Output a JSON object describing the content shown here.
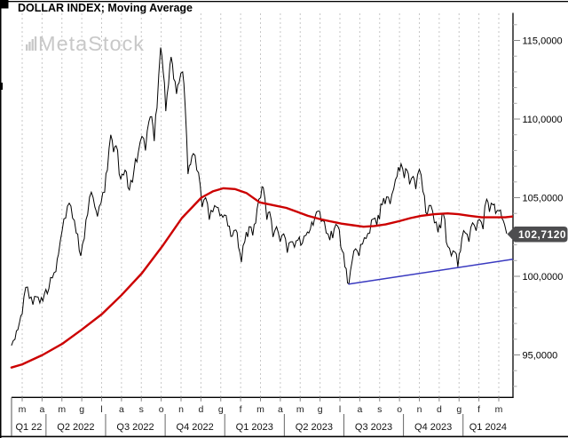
{
  "window": {
    "title": "DOLLAR INDEX; Moving Average",
    "watermark": "MetaStock"
  },
  "chart_data": {
    "type": "line",
    "title": "DOLLAR INDEX; Moving Average",
    "legend": "none",
    "grid": "dashed vertical line per month",
    "x_axis": {
      "unit": "months since 2022-03-01",
      "month_labels": [
        "m",
        "a",
        "m",
        "g",
        "l",
        "a",
        "s",
        "o",
        "n",
        "d",
        "g",
        "f",
        "m",
        "a",
        "m",
        "g",
        "l",
        "a",
        "s",
        "o",
        "n",
        "d",
        "g",
        "f",
        "m"
      ],
      "quarter_labels": [
        "Q1 22",
        "Q2 2022",
        "Q3 2022",
        "Q4 2022",
        "Q1 2023",
        "Q2 2023",
        "Q3 2023",
        "Q4 2023",
        "Q1 2024"
      ]
    },
    "y_axis": {
      "side": "right",
      "ylim": [
        92.3,
        116.7
      ],
      "major_ticks": [
        115,
        110,
        105,
        100,
        95
      ],
      "major_tick_labels": [
        "115,0000",
        "110,0000",
        "105,0000",
        "100,0000",
        "95,0000"
      ],
      "minor_tick_step": 1
    },
    "last_price": {
      "value": 102.712,
      "label": "102,7120",
      "flag_color": "#4d4d4f",
      "text_color": "#ffffff"
    },
    "series": [
      {
        "name": "DOLLAR INDEX (daily)",
        "color": "#000000",
        "style": "bars",
        "points": [
          [
            -0.54,
            95.6
          ],
          [
            -0.36,
            96.0
          ],
          [
            -0.22,
            96.6
          ],
          [
            -0.13,
            97.1
          ],
          [
            0.0,
            97.6
          ],
          [
            0.18,
            99.3
          ],
          [
            0.36,
            98.6
          ],
          [
            0.54,
            98.2
          ],
          [
            0.71,
            98.7
          ],
          [
            0.89,
            98.3
          ],
          [
            1.12,
            98.9
          ],
          [
            1.34,
            99.2
          ],
          [
            1.52,
            99.9
          ],
          [
            1.7,
            100.3
          ],
          [
            1.83,
            101.4
          ],
          [
            2.01,
            102.9
          ],
          [
            2.19,
            103.7
          ],
          [
            2.37,
            104.65
          ],
          [
            2.54,
            103.7
          ],
          [
            2.72,
            102.75
          ],
          [
            2.95,
            101.3
          ],
          [
            3.13,
            102.4
          ],
          [
            3.3,
            103.95
          ],
          [
            3.48,
            105.35
          ],
          [
            3.66,
            104.4
          ],
          [
            3.79,
            103.8
          ],
          [
            3.97,
            104.65
          ],
          [
            4.15,
            105.35
          ],
          [
            4.29,
            106.75
          ],
          [
            4.46,
            109.0
          ],
          [
            4.6,
            107.9
          ],
          [
            4.73,
            108.3
          ],
          [
            4.96,
            106.2
          ],
          [
            5.18,
            106.75
          ],
          [
            5.4,
            105.5
          ],
          [
            5.63,
            106.75
          ],
          [
            5.85,
            107.9
          ],
          [
            6.03,
            108.9
          ],
          [
            6.21,
            108.0
          ],
          [
            6.38,
            109.85
          ],
          [
            6.52,
            110.15
          ],
          [
            6.65,
            108.6
          ],
          [
            6.79,
            110.7
          ],
          [
            6.97,
            114.55
          ],
          [
            7.1,
            113.0
          ],
          [
            7.23,
            110.5
          ],
          [
            7.37,
            112.2
          ],
          [
            7.5,
            113.95
          ],
          [
            7.63,
            112.55
          ],
          [
            7.77,
            111.6
          ],
          [
            7.9,
            112.3
          ],
          [
            8.08,
            113.0
          ],
          [
            8.21,
            110.75
          ],
          [
            8.35,
            106.5
          ],
          [
            8.48,
            107.1
          ],
          [
            8.62,
            107.8
          ],
          [
            8.79,
            106.75
          ],
          [
            8.97,
            105.75
          ],
          [
            9.06,
            104.4
          ],
          [
            9.24,
            105.0
          ],
          [
            9.42,
            103.6
          ],
          [
            9.6,
            104.1
          ],
          [
            9.78,
            104.4
          ],
          [
            9.96,
            103.85
          ],
          [
            10.18,
            103.9
          ],
          [
            10.36,
            103.2
          ],
          [
            10.58,
            102.55
          ],
          [
            10.76,
            102.95
          ],
          [
            10.89,
            101.85
          ],
          [
            11.04,
            100.9
          ],
          [
            11.21,
            102.2
          ],
          [
            11.43,
            103.15
          ],
          [
            11.61,
            102.6
          ],
          [
            11.83,
            104.3
          ],
          [
            12.01,
            105.0
          ],
          [
            12.14,
            105.65
          ],
          [
            12.32,
            103.6
          ],
          [
            12.46,
            104.1
          ],
          [
            12.63,
            102.5
          ],
          [
            12.81,
            103.15
          ],
          [
            12.99,
            102.2
          ],
          [
            13.17,
            102.7
          ],
          [
            13.35,
            101.5
          ],
          [
            13.53,
            102.2
          ],
          [
            13.71,
            101.85
          ],
          [
            13.88,
            102.3
          ],
          [
            14.11,
            102.1
          ],
          [
            14.29,
            102.6
          ],
          [
            14.51,
            103.0
          ],
          [
            14.73,
            103.7
          ],
          [
            14.91,
            104.15
          ],
          [
            15.13,
            103.55
          ],
          [
            15.31,
            102.75
          ],
          [
            15.49,
            102.3
          ],
          [
            15.71,
            103.0
          ],
          [
            15.89,
            103.2
          ],
          [
            16.12,
            101.6
          ],
          [
            16.25,
            100.6
          ],
          [
            16.45,
            99.5
          ],
          [
            16.61,
            100.9
          ],
          [
            16.79,
            101.75
          ],
          [
            16.96,
            101.3
          ],
          [
            17.14,
            102.05
          ],
          [
            17.32,
            102.4
          ],
          [
            17.5,
            102.75
          ],
          [
            17.68,
            103.65
          ],
          [
            17.86,
            103.25
          ],
          [
            18.13,
            104.55
          ],
          [
            18.35,
            105.05
          ],
          [
            18.53,
            104.6
          ],
          [
            18.71,
            105.55
          ],
          [
            18.88,
            106.35
          ],
          [
            19.08,
            107.15
          ],
          [
            19.24,
            106.25
          ],
          [
            19.38,
            106.75
          ],
          [
            19.51,
            105.85
          ],
          [
            19.69,
            106.35
          ],
          [
            19.82,
            105.55
          ],
          [
            20.0,
            106.8
          ],
          [
            20.18,
            105.4
          ],
          [
            20.4,
            103.95
          ],
          [
            20.58,
            104.5
          ],
          [
            20.76,
            103.4
          ],
          [
            20.94,
            102.8
          ],
          [
            21.21,
            103.95
          ],
          [
            21.43,
            101.9
          ],
          [
            21.61,
            101.3
          ],
          [
            21.79,
            101.55
          ],
          [
            21.94,
            100.6
          ],
          [
            22.14,
            102.4
          ],
          [
            22.32,
            102.75
          ],
          [
            22.5,
            102.2
          ],
          [
            22.68,
            103.4
          ],
          [
            22.86,
            102.9
          ],
          [
            23.04,
            103.6
          ],
          [
            23.21,
            103.0
          ],
          [
            23.39,
            104.9
          ],
          [
            23.53,
            104.1
          ],
          [
            23.71,
            104.55
          ],
          [
            23.84,
            104.0
          ],
          [
            24.02,
            104.15
          ],
          [
            24.15,
            103.7
          ],
          [
            24.29,
            103.3
          ],
          [
            24.4,
            102.71
          ]
        ]
      },
      {
        "name": "Moving Average",
        "color": "#cc0000",
        "style": "smooth",
        "points": [
          [
            -0.54,
            94.2
          ],
          [
            0.0,
            94.4
          ],
          [
            1.03,
            95.0
          ],
          [
            2.01,
            95.7
          ],
          [
            2.99,
            96.6
          ],
          [
            4.02,
            97.6
          ],
          [
            5.0,
            98.8
          ],
          [
            6.03,
            100.2
          ],
          [
            7.05,
            101.9
          ],
          [
            8.04,
            103.7
          ],
          [
            9.02,
            105.0
          ],
          [
            9.6,
            105.4
          ],
          [
            10.13,
            105.6
          ],
          [
            10.71,
            105.55
          ],
          [
            11.29,
            105.3
          ],
          [
            11.96,
            104.7
          ],
          [
            12.72,
            104.5
          ],
          [
            13.3,
            104.35
          ],
          [
            13.84,
            104.1
          ],
          [
            14.38,
            103.85
          ],
          [
            14.96,
            103.65
          ],
          [
            15.49,
            103.5
          ],
          [
            16.07,
            103.35
          ],
          [
            16.65,
            103.25
          ],
          [
            17.19,
            103.15
          ],
          [
            17.72,
            103.2
          ],
          [
            18.3,
            103.3
          ],
          [
            18.97,
            103.5
          ],
          [
            19.55,
            103.7
          ],
          [
            20.09,
            103.85
          ],
          [
            20.76,
            103.95
          ],
          [
            21.43,
            104.0
          ],
          [
            21.96,
            103.95
          ],
          [
            22.54,
            103.85
          ],
          [
            23.13,
            103.75
          ],
          [
            23.71,
            103.75
          ],
          [
            24.33,
            103.75
          ],
          [
            24.69,
            103.8
          ]
        ]
      },
      {
        "name": "Trendline",
        "color": "#3a3ac0",
        "style": "straight",
        "points": [
          [
            16.45,
            99.5
          ],
          [
            24.69,
            101.08
          ]
        ]
      }
    ]
  }
}
